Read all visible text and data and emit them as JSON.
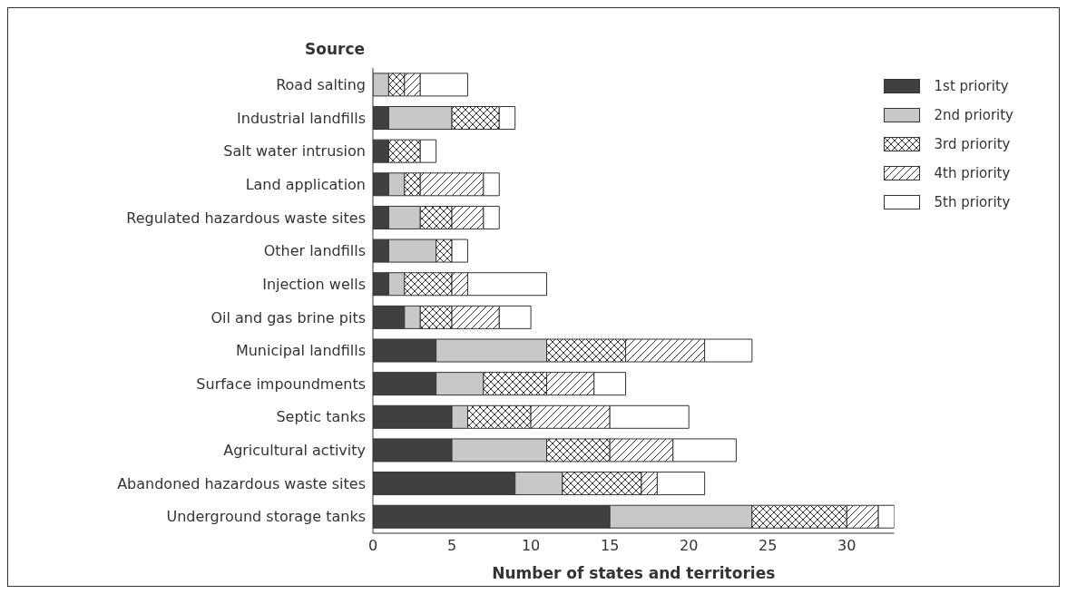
{
  "chart_data": {
    "type": "bar",
    "orientation": "horizontal",
    "stacked": true,
    "ylabel": "Source",
    "xlabel": "Number of states and territories",
    "categories": [
      "Road salting",
      "Industrial landfills",
      "Salt water intrusion",
      "Land application",
      "Regulated hazardous waste sites",
      "Other landfills",
      "Injection wells",
      "Oil and gas brine pits",
      "Municipal landfills",
      "Surface impoundments",
      "Septic tanks",
      "Agricultural activity",
      "Abandoned hazardous waste sites",
      "Underground storage tanks"
    ],
    "series": [
      {
        "name": "1st priority",
        "color": "#404040",
        "values": [
          0,
          1,
          1,
          1,
          1,
          1,
          1,
          2,
          4,
          4,
          5,
          5,
          9,
          15
        ]
      },
      {
        "name": "2nd priority",
        "color": "#c8c8c8",
        "values": [
          1,
          4,
          0,
          1,
          2,
          3,
          1,
          1,
          7,
          3,
          1,
          6,
          3,
          9
        ]
      },
      {
        "name": "3rd priority",
        "color": "#333333",
        "values": [
          1,
          3,
          2,
          1,
          2,
          1,
          3,
          2,
          5,
          4,
          4,
          4,
          5,
          6
        ]
      },
      {
        "name": "4th priority",
        "color": "#333333",
        "values": [
          1,
          0,
          0,
          4,
          2,
          0,
          1,
          3,
          5,
          3,
          5,
          4,
          1,
          2
        ]
      },
      {
        "name": "5th priority",
        "color": "#ffffff",
        "values": [
          3,
          1,
          1,
          1,
          1,
          1,
          5,
          2,
          3,
          2,
          5,
          4,
          3,
          1
        ]
      }
    ],
    "xlim": [
      0,
      33
    ],
    "xticks": [
      0,
      5,
      10,
      15,
      20,
      25,
      30
    ],
    "legend": "top right"
  }
}
